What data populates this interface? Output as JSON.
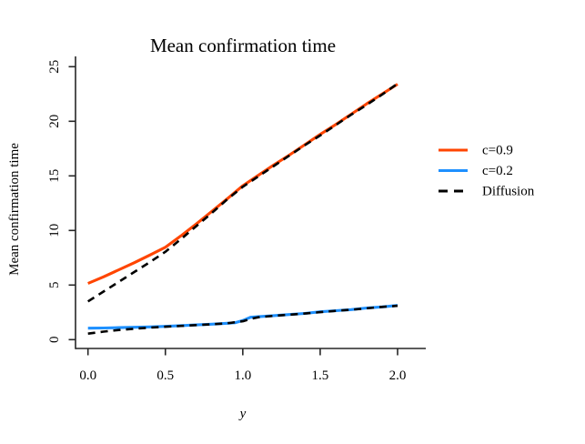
{
  "title": "Mean confirmation time",
  "x_axis": {
    "label": "y",
    "tick_values": [
      0,
      0.5,
      1.0,
      1.5,
      2.0
    ],
    "tick_labels": [
      "0.0",
      "0.5",
      "1.0",
      "1.5",
      "2.0"
    ]
  },
  "y_axis": {
    "label": "Mean confirmation time",
    "tick_values": [
      0,
      5,
      10,
      15,
      20,
      25
    ],
    "tick_labels": [
      "0",
      "5",
      "10",
      "15",
      "20",
      "25"
    ]
  },
  "legend": {
    "position": "right",
    "items": [
      {
        "label": "c=0.9",
        "color": "#FF4500",
        "dash": false
      },
      {
        "label": "c=0.2",
        "color": "#1E90FF",
        "dash": false
      },
      {
        "label": "Diffusion",
        "color": "#000000",
        "dash": true
      }
    ]
  },
  "chart_data": {
    "type": "line",
    "title": "Mean confirmation time",
    "xlabel": "y",
    "ylabel": "Mean confirmation time",
    "xlim": [
      0,
      2
    ],
    "ylim": [
      0,
      25
    ],
    "grid": false,
    "legend_position": "right",
    "series": [
      {
        "name": "c=0.9",
        "color": "#FF4500",
        "dash": false,
        "x": [
          0,
          0.1,
          0.2,
          0.3,
          0.4,
          0.5,
          0.6,
          0.7,
          0.8,
          0.9,
          0.95,
          1.0,
          1.1,
          1.2,
          1.3,
          1.4,
          1.5,
          1.6,
          1.7,
          1.8,
          1.9,
          2.0
        ],
        "y": [
          5.15,
          5.75,
          6.4,
          7.05,
          7.75,
          8.47,
          9.5,
          10.6,
          11.75,
          12.9,
          13.5,
          14.1,
          15.05,
          16.0,
          16.9,
          17.85,
          18.8,
          19.7,
          20.65,
          21.6,
          22.5,
          23.4
        ]
      },
      {
        "name": "c=0.2",
        "color": "#1E90FF",
        "dash": false,
        "x": [
          0,
          0.1,
          0.2,
          0.3,
          0.4,
          0.5,
          0.6,
          0.7,
          0.8,
          0.9,
          0.95,
          1.0,
          1.05,
          1.1,
          1.2,
          1.3,
          1.4,
          1.5,
          1.6,
          1.7,
          1.8,
          1.9,
          2.0
        ],
        "y": [
          1.05,
          1.07,
          1.1,
          1.13,
          1.17,
          1.22,
          1.28,
          1.35,
          1.42,
          1.5,
          1.55,
          1.75,
          2.05,
          2.1,
          2.2,
          2.3,
          2.4,
          2.55,
          2.65,
          2.75,
          2.9,
          3.0,
          3.13
        ]
      },
      {
        "name": "Diffusion (c=0.9)",
        "color": "#000000",
        "dash": true,
        "x": [
          0,
          0.1,
          0.2,
          0.3,
          0.4,
          0.5,
          0.6,
          0.7,
          0.8,
          0.9,
          1.0,
          1.1,
          1.2,
          1.3,
          1.4,
          1.5,
          1.6,
          1.7,
          1.8,
          1.9,
          2.0
        ],
        "y": [
          3.5,
          4.4,
          5.3,
          6.2,
          7.1,
          8.05,
          9.2,
          10.4,
          11.6,
          12.85,
          14.0,
          14.95,
          15.9,
          16.85,
          17.8,
          18.7,
          19.65,
          20.6,
          21.5,
          22.45,
          23.45
        ]
      },
      {
        "name": "Diffusion (c=0.2)",
        "color": "#000000",
        "dash": true,
        "x": [
          0,
          0.1,
          0.2,
          0.3,
          0.4,
          0.5,
          0.6,
          0.7,
          0.8,
          0.9,
          1.0,
          1.05,
          1.1,
          1.2,
          1.3,
          1.4,
          1.5,
          1.6,
          1.7,
          1.8,
          1.9,
          2.0
        ],
        "y": [
          0.55,
          0.73,
          0.88,
          1.0,
          1.1,
          1.18,
          1.26,
          1.33,
          1.41,
          1.5,
          1.68,
          1.9,
          2.05,
          2.18,
          2.28,
          2.39,
          2.52,
          2.63,
          2.74,
          2.87,
          3.0,
          3.1
        ]
      }
    ]
  }
}
